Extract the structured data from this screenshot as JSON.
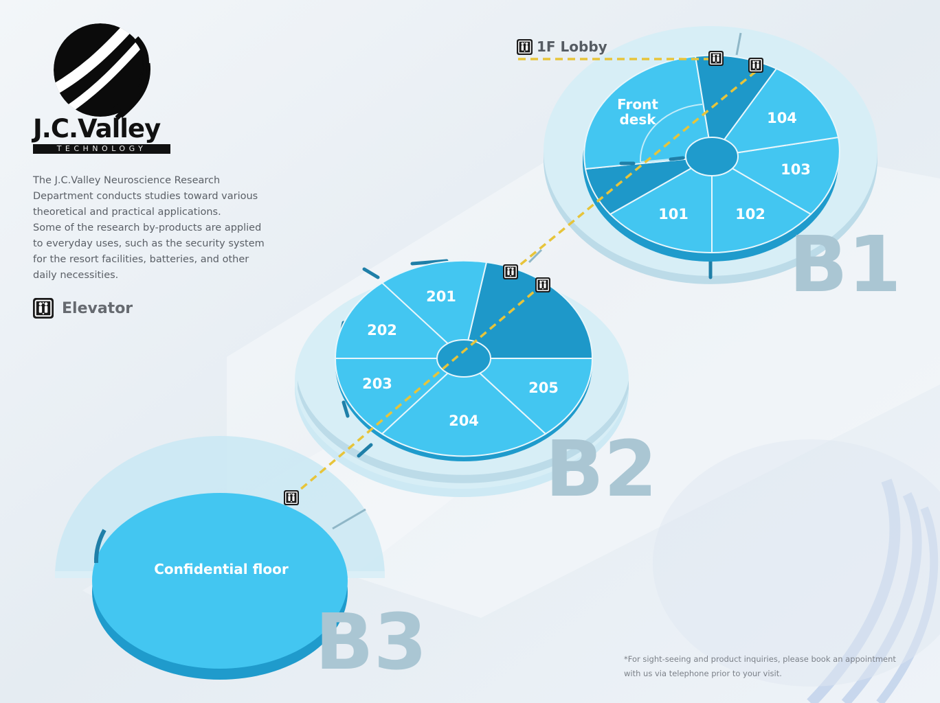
{
  "brand": {
    "name": "J.C.Valley",
    "subtitle": "TECHNOLOGY"
  },
  "description": [
    "The J.C.Valley Neuroscience Research",
    "Department conducts studies toward various",
    "theoretical and practical applications.",
    "Some of the research by-products are applied",
    "to everyday uses, such as the security system",
    "for the resort facilities, batteries, and other",
    "daily necessities."
  ],
  "legend": {
    "label": "Elevator",
    "icon": "elevator-icon"
  },
  "lobby": {
    "label": "1F Lobby",
    "icon": "elevator-icon"
  },
  "floors": {
    "b1": {
      "label": "B1",
      "rooms": [
        "Front",
        "desk",
        "104",
        "103",
        "102",
        "101"
      ]
    },
    "b2": {
      "label": "B2",
      "rooms": [
        "201",
        "202",
        "203",
        "204",
        "205"
      ]
    },
    "b3": {
      "label": "B3",
      "rooms": [
        "Confidential floor"
      ]
    }
  },
  "footnote": [
    "*For sight-seeing and product inquiries, please book an appointment",
    "with us via telephone prior to your visit."
  ],
  "colors": {
    "room": "#43c6f1",
    "room_dark": "#1e98c9",
    "ring": "#c9e8f3",
    "route": "#e7c43a",
    "floor_label": "#aac6d3"
  }
}
